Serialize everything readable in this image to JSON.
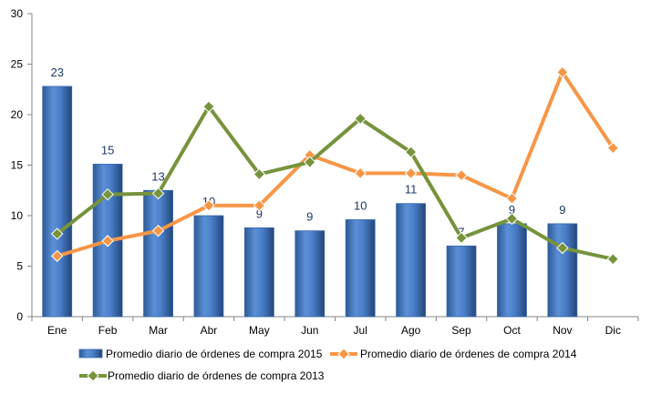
{
  "chart_data": {
    "type": "bar",
    "categories": [
      "Ene",
      "Feb",
      "Mar",
      "Abr",
      "May",
      "Jun",
      "Jul",
      "Ago",
      "Sep",
      "Oct",
      "Nov",
      "Dic"
    ],
    "ylim": [
      0,
      30
    ],
    "yticks": [
      0,
      5,
      10,
      15,
      20,
      25,
      30
    ],
    "grid": false,
    "legend_position": "bottom",
    "series": [
      {
        "name": "Promedio diario de órdenes de compra 2015",
        "type": "bar",
        "color": "#4f81bd",
        "values": [
          22.8,
          15.1,
          12.5,
          10.0,
          8.8,
          8.5,
          9.6,
          11.2,
          7.0,
          9.2,
          9.2,
          null
        ],
        "data_labels": [
          "23",
          "15",
          "13",
          "10",
          "9",
          "9",
          "10",
          "11",
          "7",
          "9",
          "9",
          ""
        ]
      },
      {
        "name": "Promedio diario de órdenes de compra 2014",
        "type": "line",
        "color": "#f79646",
        "marker": "diamond",
        "values": [
          6.0,
          7.5,
          8.5,
          11.0,
          11.0,
          16.0,
          14.2,
          14.2,
          14.0,
          11.7,
          24.2,
          16.7
        ]
      },
      {
        "name": "Promedio diario de órdenes de compra 2013",
        "type": "line",
        "color": "#77933c",
        "marker": "diamond",
        "values": [
          8.2,
          12.1,
          12.2,
          20.8,
          14.1,
          15.3,
          19.6,
          16.3,
          7.8,
          9.7,
          6.8,
          5.7
        ]
      }
    ]
  }
}
